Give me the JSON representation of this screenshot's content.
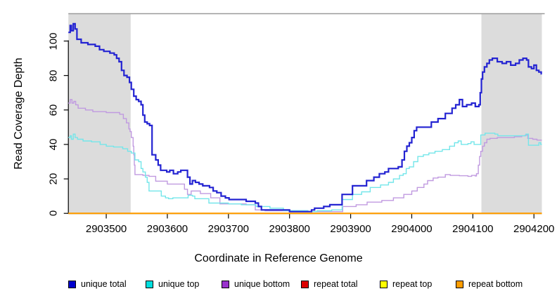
{
  "chart_data": {
    "type": "line",
    "step": true,
    "title": "",
    "xlabel": "Coordinate in Reference Genome",
    "ylabel": "Read Coverage Depth",
    "xlim": [
      2903438,
      2904213
    ],
    "ylim": [
      0,
      117
    ],
    "x_ticks": [
      2903500,
      2903600,
      2903700,
      2903800,
      2903900,
      2904000,
      2904100,
      2904200
    ],
    "y_ticks": [
      0,
      20,
      40,
      60,
      80,
      100
    ],
    "grid": false,
    "legend_position": "bottom",
    "background_color": "#ffffff",
    "shaded_region_color": "#dcdcdc",
    "shaded_regions": [
      {
        "x0": 2903438,
        "x1": 2903540
      },
      {
        "x0": 2904114,
        "x1": 2904213
      }
    ],
    "legend": [
      {
        "label": "unique total",
        "color": "#0000cd"
      },
      {
        "label": "unique top",
        "color": "#00dede"
      },
      {
        "label": "unique bottom",
        "color": "#9932cc"
      },
      {
        "label": "repeat total",
        "color": "#dd0000"
      },
      {
        "label": "repeat top",
        "color": "#ffff00"
      },
      {
        "label": "repeat bottom",
        "color": "#ff9d00"
      }
    ],
    "series": [
      {
        "name": "repeat total",
        "color": "#dd0000",
        "width": 1.6,
        "points": [
          [
            2903438,
            0
          ],
          [
            2904213,
            0
          ]
        ]
      },
      {
        "name": "repeat top",
        "color": "#ffff00",
        "width": 1.6,
        "points": [
          [
            2903438,
            0
          ],
          [
            2904213,
            0
          ]
        ]
      },
      {
        "name": "repeat bottom",
        "color": "#ff9d00",
        "width": 2,
        "points": [
          [
            2903438,
            0
          ],
          [
            2904213,
            0
          ]
        ]
      },
      {
        "name": "unique bottom",
        "color": "#c09ae0",
        "width": 1.4,
        "points": [
          [
            2903438,
            64
          ],
          [
            2903441,
            66
          ],
          [
            2903444,
            64
          ],
          [
            2903447,
            65
          ],
          [
            2903450,
            63
          ],
          [
            2903454,
            61
          ],
          [
            2903466,
            60
          ],
          [
            2903478,
            59
          ],
          [
            2903500,
            58.5
          ],
          [
            2903522,
            57.5
          ],
          [
            2903528,
            55
          ],
          [
            2903533,
            52.5
          ],
          [
            2903537,
            49
          ],
          [
            2903539,
            47.5
          ],
          [
            2903541,
            44
          ],
          [
            2903544,
            39
          ],
          [
            2903545,
            34
          ],
          [
            2903546,
            28
          ],
          [
            2903547,
            22.5
          ],
          [
            2903560,
            22
          ],
          [
            2903570,
            21.5
          ],
          [
            2903581,
            18.7
          ],
          [
            2903600,
            17
          ],
          [
            2903628,
            14
          ],
          [
            2903633,
            11
          ],
          [
            2903639,
            13
          ],
          [
            2903654,
            11.5
          ],
          [
            2903671,
            9
          ],
          [
            2903686,
            5.5
          ],
          [
            2903729,
            5
          ],
          [
            2903744,
            2
          ],
          [
            2903760,
            1.5
          ],
          [
            2903800,
            1
          ],
          [
            2903887,
            4
          ],
          [
            2903909,
            5
          ],
          [
            2903927,
            6.5
          ],
          [
            2903951,
            7.5
          ],
          [
            2903970,
            9
          ],
          [
            2903987,
            11
          ],
          [
            2904000,
            13
          ],
          [
            2904009,
            15
          ],
          [
            2904020,
            17
          ],
          [
            2904026,
            19
          ],
          [
            2904035,
            20.5
          ],
          [
            2904043,
            21
          ],
          [
            2904055,
            22.5
          ],
          [
            2904063,
            22
          ],
          [
            2904078,
            21.8
          ],
          [
            2904092,
            21.5
          ],
          [
            2904098,
            22
          ],
          [
            2904104,
            21.7
          ],
          [
            2904106,
            23
          ],
          [
            2904109,
            28
          ],
          [
            2904111,
            33
          ],
          [
            2904113,
            36
          ],
          [
            2904116,
            39
          ],
          [
            2904119,
            41
          ],
          [
            2904123,
            43
          ],
          [
            2904128,
            43.5
          ],
          [
            2904140,
            44
          ],
          [
            2904155,
            44
          ],
          [
            2904168,
            44.5
          ],
          [
            2904180,
            45
          ],
          [
            2904186,
            45.5
          ],
          [
            2904190,
            43.5
          ],
          [
            2904198,
            43
          ],
          [
            2904205,
            42.5
          ],
          [
            2904211,
            42.5
          ]
        ]
      },
      {
        "name": "unique top",
        "color": "#74e6ea",
        "width": 1.4,
        "points": [
          [
            2903438,
            44
          ],
          [
            2903441,
            45
          ],
          [
            2903443,
            43
          ],
          [
            2903446,
            46
          ],
          [
            2903449,
            44
          ],
          [
            2903453,
            43
          ],
          [
            2903462,
            42
          ],
          [
            2903476,
            41.5
          ],
          [
            2903490,
            40
          ],
          [
            2903500,
            39
          ],
          [
            2903512,
            38.5
          ],
          [
            2903527,
            37.5
          ],
          [
            2903535,
            36
          ],
          [
            2903541,
            35
          ],
          [
            2903547,
            31
          ],
          [
            2903553,
            30
          ],
          [
            2903557,
            26
          ],
          [
            2903560,
            24
          ],
          [
            2903564,
            21
          ],
          [
            2903567,
            18
          ],
          [
            2903570,
            13
          ],
          [
            2903590,
            10
          ],
          [
            2903597,
            9
          ],
          [
            2903602,
            8.5
          ],
          [
            2903609,
            9
          ],
          [
            2903631,
            9
          ],
          [
            2903634,
            10.5
          ],
          [
            2903641,
            10
          ],
          [
            2903645,
            8.5
          ],
          [
            2903662,
            8.5
          ],
          [
            2903668,
            6
          ],
          [
            2903700,
            5.5
          ],
          [
            2903721,
            5
          ],
          [
            2903745,
            4
          ],
          [
            2903768,
            3
          ],
          [
            2903790,
            1.6
          ],
          [
            2903830,
            1
          ],
          [
            2903845,
            1.5
          ],
          [
            2903869,
            2
          ],
          [
            2903886,
            8
          ],
          [
            2903903,
            11
          ],
          [
            2903918,
            12.5
          ],
          [
            2903932,
            15
          ],
          [
            2903949,
            16.5
          ],
          [
            2903962,
            18
          ],
          [
            2903970,
            20
          ],
          [
            2903980,
            22
          ],
          [
            2903986,
            23
          ],
          [
            2903991,
            26
          ],
          [
            2903996,
            27
          ],
          [
            2904003,
            30
          ],
          [
            2904010,
            33
          ],
          [
            2904019,
            34
          ],
          [
            2904028,
            35
          ],
          [
            2904038,
            36
          ],
          [
            2904050,
            37
          ],
          [
            2904062,
            39
          ],
          [
            2904070,
            41
          ],
          [
            2904076,
            42
          ],
          [
            2904081,
            40
          ],
          [
            2904092,
            40.5
          ],
          [
            2904097,
            41.5
          ],
          [
            2904102,
            40
          ],
          [
            2904113,
            45.5
          ],
          [
            2904120,
            46.5
          ],
          [
            2904136,
            46
          ],
          [
            2904141,
            45
          ],
          [
            2904170,
            45
          ],
          [
            2904184,
            45
          ],
          [
            2904187,
            46
          ],
          [
            2904191,
            39.5
          ],
          [
            2904204,
            39.5
          ],
          [
            2904208,
            41
          ],
          [
            2904211,
            40
          ]
        ]
      },
      {
        "name": "unique total",
        "color": "#2323d2",
        "width": 2.2,
        "points": [
          [
            2903438,
            105
          ],
          [
            2903441,
            109
          ],
          [
            2903443,
            106
          ],
          [
            2903446,
            110
          ],
          [
            2903449,
            107
          ],
          [
            2903452,
            101
          ],
          [
            2903459,
            99
          ],
          [
            2903470,
            98
          ],
          [
            2903482,
            97
          ],
          [
            2903489,
            95
          ],
          [
            2903496,
            94
          ],
          [
            2903506,
            93
          ],
          [
            2903513,
            92
          ],
          [
            2903517,
            90
          ],
          [
            2903521,
            88
          ],
          [
            2903525,
            83
          ],
          [
            2903529,
            80
          ],
          [
            2903534,
            79
          ],
          [
            2903538,
            76
          ],
          [
            2903541,
            72
          ],
          [
            2903545,
            68
          ],
          [
            2903549,
            66
          ],
          [
            2903553,
            65
          ],
          [
            2903557,
            63
          ],
          [
            2903560,
            57
          ],
          [
            2903563,
            53
          ],
          [
            2903567,
            52
          ],
          [
            2903571,
            51
          ],
          [
            2903575,
            34
          ],
          [
            2903581,
            31
          ],
          [
            2903585,
            28
          ],
          [
            2903589,
            25
          ],
          [
            2903599,
            24
          ],
          [
            2903604,
            25
          ],
          [
            2903610,
            23
          ],
          [
            2903617,
            24
          ],
          [
            2903622,
            25
          ],
          [
            2903629,
            25
          ],
          [
            2903633,
            21
          ],
          [
            2903637,
            17
          ],
          [
            2903641,
            19
          ],
          [
            2903646,
            18
          ],
          [
            2903652,
            17
          ],
          [
            2903658,
            16
          ],
          [
            2903669,
            15
          ],
          [
            2903675,
            13
          ],
          [
            2903681,
            12
          ],
          [
            2903688,
            10
          ],
          [
            2903695,
            9
          ],
          [
            2903701,
            8
          ],
          [
            2903729,
            7
          ],
          [
            2903744,
            6
          ],
          [
            2903749,
            4
          ],
          [
            2903754,
            2
          ],
          [
            2903800,
            1
          ],
          [
            2903836,
            2
          ],
          [
            2903841,
            3
          ],
          [
            2903856,
            4
          ],
          [
            2903866,
            5
          ],
          [
            2903886,
            11
          ],
          [
            2903903,
            16
          ],
          [
            2903926,
            19
          ],
          [
            2903938,
            21
          ],
          [
            2903947,
            23
          ],
          [
            2903956,
            24
          ],
          [
            2903962,
            26
          ],
          [
            2903978,
            27
          ],
          [
            2903984,
            31
          ],
          [
            2903988,
            36
          ],
          [
            2903992,
            39
          ],
          [
            2903996,
            41
          ],
          [
            2904000,
            44
          ],
          [
            2904004,
            48
          ],
          [
            2904008,
            50
          ],
          [
            2904032,
            53
          ],
          [
            2904043,
            55
          ],
          [
            2904055,
            58
          ],
          [
            2904066,
            61
          ],
          [
            2904072,
            63
          ],
          [
            2904078,
            66
          ],
          [
            2904083,
            62
          ],
          [
            2904090,
            63
          ],
          [
            2904098,
            64
          ],
          [
            2904104,
            62
          ],
          [
            2904110,
            63
          ],
          [
            2904112,
            70
          ],
          [
            2904114,
            78
          ],
          [
            2904116,
            82
          ],
          [
            2904119,
            85
          ],
          [
            2904123,
            87
          ],
          [
            2904127,
            89
          ],
          [
            2904132,
            90
          ],
          [
            2904140,
            88
          ],
          [
            2904148,
            87
          ],
          [
            2904155,
            88
          ],
          [
            2904162,
            86
          ],
          [
            2904170,
            87
          ],
          [
            2904176,
            89
          ],
          [
            2904182,
            90
          ],
          [
            2904188,
            89
          ],
          [
            2904191,
            85
          ],
          [
            2904196,
            84
          ],
          [
            2904200,
            86
          ],
          [
            2904204,
            83
          ],
          [
            2904208,
            82
          ],
          [
            2904212,
            81
          ]
        ]
      }
    ]
  }
}
